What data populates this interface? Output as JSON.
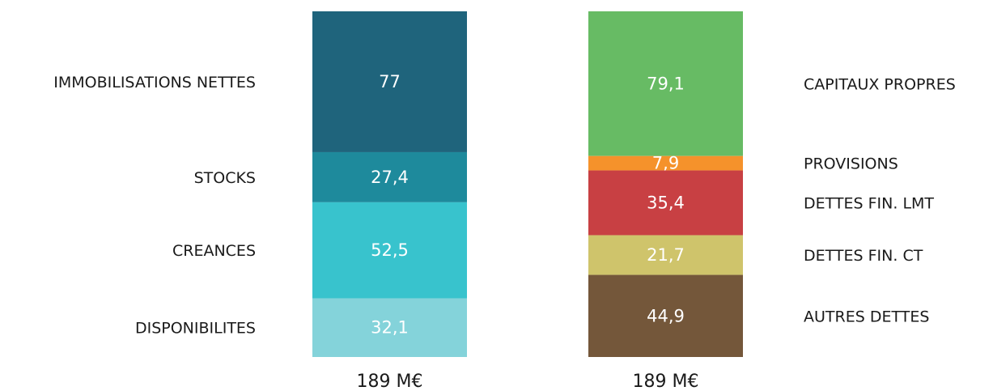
{
  "chart_data": {
    "type": "bar",
    "stacked": true,
    "title": "",
    "columns": [
      {
        "total_label": "189 M€",
        "label_side": "left",
        "segments": [
          {
            "name": "IMMOBILISATIONS NETTES",
            "value": 77,
            "value_label": "77",
            "color": "#1f647c"
          },
          {
            "name": "STOCKS",
            "value": 27.4,
            "value_label": "27,4",
            "color": "#1e8a9c"
          },
          {
            "name": "CREANCES",
            "value": 52.5,
            "value_label": "52,5",
            "color": "#38c3cd"
          },
          {
            "name": "DISPONIBILITES",
            "value": 32.1,
            "value_label": "32,1",
            "color": "#84d3da"
          }
        ]
      },
      {
        "total_label": "189 M€",
        "label_side": "right",
        "segments": [
          {
            "name": "CAPITAUX PROPRES",
            "value": 79.1,
            "value_label": "79,1",
            "color": "#67bb64"
          },
          {
            "name": "PROVISIONS",
            "value": 7.9,
            "value_label": "7,9",
            "color": "#f5922b"
          },
          {
            "name": "DETTES FIN. LMT",
            "value": 35.4,
            "value_label": "35,4",
            "color": "#c84043"
          },
          {
            "name": "DETTES FIN. CT",
            "value": 21.7,
            "value_label": "21,7",
            "color": "#cfc46b"
          },
          {
            "name": "AUTRES DETTES",
            "value": 44.9,
            "value_label": "44,9",
            "color": "#74573a"
          }
        ]
      }
    ]
  }
}
